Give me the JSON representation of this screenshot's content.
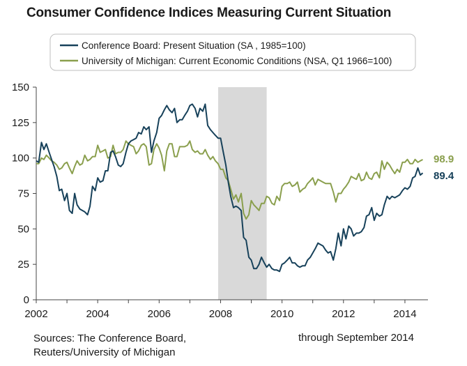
{
  "chart_data": {
    "type": "line",
    "title": "Consumer Confidence Indices Measuring Current Situation",
    "xlim": [
      2002,
      2014.75
    ],
    "ylim": [
      0,
      150
    ],
    "x_ticks": [
      2002,
      2004,
      2006,
      2008,
      2010,
      2012,
      2014
    ],
    "x_tick_labels": [
      "2002",
      "2004",
      "2006",
      "2008",
      "2010",
      "2012",
      "2014"
    ],
    "y_ticks": [
      0,
      25,
      50,
      75,
      100,
      125,
      150
    ],
    "y_tick_labels": [
      "0",
      "25",
      "50",
      "75",
      "100",
      "125",
      "150"
    ],
    "grid": false,
    "legend_placement": "top",
    "shaded_region": {
      "x_start": 2007.92,
      "x_end": 2009.5,
      "color": "#d9d9d9"
    },
    "series": [
      {
        "name": "Conference Board: Present Situation (SA , 1985=100)",
        "color": "#17415a",
        "end_label": "89.4",
        "points": [
          [
            2002.0,
            98
          ],
          [
            2002.08,
            97
          ],
          [
            2002.17,
            111
          ],
          [
            2002.25,
            106
          ],
          [
            2002.33,
            110
          ],
          [
            2002.42,
            104
          ],
          [
            2002.5,
            99
          ],
          [
            2002.58,
            94
          ],
          [
            2002.67,
            87
          ],
          [
            2002.75,
            77
          ],
          [
            2002.83,
            78
          ],
          [
            2002.92,
            70
          ],
          [
            2003.0,
            75
          ],
          [
            2003.08,
            63
          ],
          [
            2003.17,
            61
          ],
          [
            2003.25,
            75
          ],
          [
            2003.33,
            67
          ],
          [
            2003.42,
            64
          ],
          [
            2003.5,
            63
          ],
          [
            2003.58,
            62
          ],
          [
            2003.67,
            60
          ],
          [
            2003.75,
            66
          ],
          [
            2003.83,
            80
          ],
          [
            2003.92,
            77
          ],
          [
            2004.0,
            86
          ],
          [
            2004.08,
            83
          ],
          [
            2004.17,
            84
          ],
          [
            2004.25,
            91
          ],
          [
            2004.33,
            91
          ],
          [
            2004.42,
            104
          ],
          [
            2004.5,
            105
          ],
          [
            2004.58,
            101
          ],
          [
            2004.67,
            95
          ],
          [
            2004.75,
            94
          ],
          [
            2004.83,
            96
          ],
          [
            2004.92,
            104
          ],
          [
            2005.0,
            110
          ],
          [
            2005.08,
            112
          ],
          [
            2005.17,
            113
          ],
          [
            2005.25,
            114
          ],
          [
            2005.33,
            118
          ],
          [
            2005.42,
            117
          ],
          [
            2005.5,
            122
          ],
          [
            2005.58,
            120
          ],
          [
            2005.67,
            122
          ],
          [
            2005.75,
            104
          ],
          [
            2005.83,
            112
          ],
          [
            2005.92,
            118
          ],
          [
            2006.0,
            128
          ],
          [
            2006.08,
            130
          ],
          [
            2006.17,
            134
          ],
          [
            2006.25,
            137
          ],
          [
            2006.33,
            134
          ],
          [
            2006.42,
            132
          ],
          [
            2006.5,
            135
          ],
          [
            2006.58,
            125
          ],
          [
            2006.67,
            127
          ],
          [
            2006.75,
            127
          ],
          [
            2006.83,
            130
          ],
          [
            2006.92,
            133
          ],
          [
            2007.0,
            137
          ],
          [
            2007.08,
            138
          ],
          [
            2007.17,
            135
          ],
          [
            2007.25,
            129
          ],
          [
            2007.33,
            135
          ],
          [
            2007.42,
            133
          ],
          [
            2007.5,
            138
          ],
          [
            2007.58,
            123
          ],
          [
            2007.67,
            120
          ],
          [
            2007.75,
            118
          ],
          [
            2007.83,
            116
          ],
          [
            2007.92,
            114
          ],
          [
            2008.0,
            114
          ],
          [
            2008.08,
            105
          ],
          [
            2008.17,
            95
          ],
          [
            2008.25,
            83
          ],
          [
            2008.33,
            73
          ],
          [
            2008.42,
            65
          ],
          [
            2008.5,
            66
          ],
          [
            2008.58,
            65
          ],
          [
            2008.67,
            63
          ],
          [
            2008.75,
            44
          ],
          [
            2008.83,
            42
          ],
          [
            2008.92,
            30
          ],
          [
            2009.0,
            28
          ],
          [
            2009.08,
            22
          ],
          [
            2009.17,
            22
          ],
          [
            2009.25,
            25
          ],
          [
            2009.33,
            30
          ],
          [
            2009.42,
            26
          ],
          [
            2009.5,
            23
          ],
          [
            2009.58,
            25
          ],
          [
            2009.67,
            22
          ],
          [
            2009.75,
            21
          ],
          [
            2009.83,
            21
          ],
          [
            2009.92,
            20
          ],
          [
            2010.0,
            25
          ],
          [
            2010.08,
            26
          ],
          [
            2010.17,
            28
          ],
          [
            2010.25,
            30
          ],
          [
            2010.33,
            26
          ],
          [
            2010.42,
            26
          ],
          [
            2010.5,
            24
          ],
          [
            2010.58,
            23
          ],
          [
            2010.67,
            24
          ],
          [
            2010.75,
            24
          ],
          [
            2010.83,
            28
          ],
          [
            2010.92,
            30
          ],
          [
            2011.0,
            33
          ],
          [
            2011.08,
            36
          ],
          [
            2011.17,
            40
          ],
          [
            2011.25,
            39
          ],
          [
            2011.33,
            38
          ],
          [
            2011.42,
            35
          ],
          [
            2011.5,
            33
          ],
          [
            2011.58,
            34
          ],
          [
            2011.67,
            28
          ],
          [
            2011.75,
            36
          ],
          [
            2011.83,
            47
          ],
          [
            2011.92,
            38
          ],
          [
            2012.0,
            50
          ],
          [
            2012.08,
            43
          ],
          [
            2012.17,
            52
          ],
          [
            2012.25,
            50
          ],
          [
            2012.33,
            45
          ],
          [
            2012.42,
            47
          ],
          [
            2012.5,
            47
          ],
          [
            2012.58,
            48
          ],
          [
            2012.67,
            51
          ],
          [
            2012.75,
            59
          ],
          [
            2012.83,
            60
          ],
          [
            2012.92,
            65
          ],
          [
            2013.0,
            56
          ],
          [
            2013.08,
            61
          ],
          [
            2013.17,
            59
          ],
          [
            2013.25,
            60
          ],
          [
            2013.33,
            67
          ],
          [
            2013.42,
            73
          ],
          [
            2013.5,
            71
          ],
          [
            2013.58,
            73
          ],
          [
            2013.67,
            72
          ],
          [
            2013.75,
            73
          ],
          [
            2013.83,
            74
          ],
          [
            2013.92,
            77
          ],
          [
            2014.0,
            79
          ],
          [
            2014.08,
            78
          ],
          [
            2014.17,
            80
          ],
          [
            2014.25,
            86
          ],
          [
            2014.33,
            87
          ],
          [
            2014.42,
            93
          ],
          [
            2014.5,
            88
          ],
          [
            2014.58,
            89.4
          ]
        ]
      },
      {
        "name": "University of Michigan: Current Economic Conditions (NSA, Q1 1966=100)",
        "color": "#8a9f4d",
        "end_label": "98.9",
        "points": [
          [
            2002.0,
            96
          ],
          [
            2002.08,
            96
          ],
          [
            2002.17,
            100
          ],
          [
            2002.25,
            99
          ],
          [
            2002.33,
            102
          ],
          [
            2002.42,
            100
          ],
          [
            2002.5,
            98
          ],
          [
            2002.58,
            97
          ],
          [
            2002.67,
            95
          ],
          [
            2002.75,
            92
          ],
          [
            2002.83,
            93
          ],
          [
            2002.92,
            96
          ],
          [
            2003.0,
            97
          ],
          [
            2003.08,
            93
          ],
          [
            2003.17,
            89
          ],
          [
            2003.25,
            94
          ],
          [
            2003.33,
            98
          ],
          [
            2003.42,
            95
          ],
          [
            2003.5,
            96
          ],
          [
            2003.58,
            102
          ],
          [
            2003.67,
            98
          ],
          [
            2003.75,
            99
          ],
          [
            2003.83,
            101
          ],
          [
            2003.92,
            101
          ],
          [
            2004.0,
            109
          ],
          [
            2004.08,
            104
          ],
          [
            2004.17,
            105
          ],
          [
            2004.25,
            106
          ],
          [
            2004.33,
            100
          ],
          [
            2004.42,
            101
          ],
          [
            2004.5,
            109
          ],
          [
            2004.58,
            103
          ],
          [
            2004.67,
            104
          ],
          [
            2004.75,
            104
          ],
          [
            2004.83,
            106
          ],
          [
            2004.92,
            112
          ],
          [
            2005.0,
            110
          ],
          [
            2005.08,
            109
          ],
          [
            2005.17,
            108
          ],
          [
            2005.25,
            103
          ],
          [
            2005.33,
            105
          ],
          [
            2005.42,
            109
          ],
          [
            2005.5,
            110
          ],
          [
            2005.58,
            108
          ],
          [
            2005.67,
            95
          ],
          [
            2005.75,
            96
          ],
          [
            2005.83,
            106
          ],
          [
            2005.92,
            110
          ],
          [
            2006.0,
            107
          ],
          [
            2006.08,
            102
          ],
          [
            2006.17,
            91
          ],
          [
            2006.25,
            105
          ],
          [
            2006.33,
            110
          ],
          [
            2006.42,
            110
          ],
          [
            2006.5,
            101
          ],
          [
            2006.58,
            101
          ],
          [
            2006.67,
            108
          ],
          [
            2006.75,
            108
          ],
          [
            2006.83,
            108
          ],
          [
            2006.92,
            109
          ],
          [
            2007.0,
            112
          ],
          [
            2007.08,
            106
          ],
          [
            2007.17,
            104
          ],
          [
            2007.25,
            105
          ],
          [
            2007.33,
            103
          ],
          [
            2007.42,
            103
          ],
          [
            2007.5,
            106
          ],
          [
            2007.58,
            102
          ],
          [
            2007.67,
            99
          ],
          [
            2007.75,
            101
          ],
          [
            2007.83,
            98
          ],
          [
            2007.92,
            96
          ],
          [
            2008.0,
            92
          ],
          [
            2008.08,
            92
          ],
          [
            2008.17,
            86
          ],
          [
            2008.25,
            84
          ],
          [
            2008.33,
            78
          ],
          [
            2008.42,
            71
          ],
          [
            2008.5,
            74
          ],
          [
            2008.58,
            69
          ],
          [
            2008.67,
            75
          ],
          [
            2008.75,
            61
          ],
          [
            2008.83,
            57
          ],
          [
            2008.92,
            60
          ],
          [
            2009.0,
            70
          ],
          [
            2009.08,
            67
          ],
          [
            2009.17,
            65
          ],
          [
            2009.25,
            63
          ],
          [
            2009.33,
            68
          ],
          [
            2009.42,
            68
          ],
          [
            2009.5,
            73
          ],
          [
            2009.58,
            72
          ],
          [
            2009.67,
            68
          ],
          [
            2009.75,
            67
          ],
          [
            2009.83,
            73
          ],
          [
            2009.92,
            70
          ],
          [
            2010.0,
            80
          ],
          [
            2010.08,
            82
          ],
          [
            2010.17,
            82
          ],
          [
            2010.25,
            83
          ],
          [
            2010.33,
            80
          ],
          [
            2010.42,
            81
          ],
          [
            2010.5,
            83
          ],
          [
            2010.58,
            76
          ],
          [
            2010.67,
            78
          ],
          [
            2010.75,
            79
          ],
          [
            2010.83,
            82
          ],
          [
            2010.92,
            84
          ],
          [
            2011.0,
            86
          ],
          [
            2011.08,
            81
          ],
          [
            2011.17,
            85
          ],
          [
            2011.25,
            84
          ],
          [
            2011.33,
            83
          ],
          [
            2011.42,
            82
          ],
          [
            2011.5,
            82
          ],
          [
            2011.58,
            82
          ],
          [
            2011.67,
            76
          ],
          [
            2011.75,
            69
          ],
          [
            2011.83,
            75
          ],
          [
            2011.92,
            75
          ],
          [
            2012.0,
            78
          ],
          [
            2012.08,
            80
          ],
          [
            2012.17,
            83
          ],
          [
            2012.25,
            87
          ],
          [
            2012.33,
            86
          ],
          [
            2012.42,
            85
          ],
          [
            2012.5,
            89
          ],
          [
            2012.58,
            84
          ],
          [
            2012.67,
            85
          ],
          [
            2012.75,
            90
          ],
          [
            2012.83,
            86
          ],
          [
            2012.92,
            85
          ],
          [
            2013.0,
            89
          ],
          [
            2013.08,
            90
          ],
          [
            2013.17,
            86
          ],
          [
            2013.25,
            98
          ],
          [
            2013.33,
            92
          ],
          [
            2013.42,
            97
          ],
          [
            2013.5,
            95
          ],
          [
            2013.58,
            92
          ],
          [
            2013.67,
            89
          ],
          [
            2013.75,
            92
          ],
          [
            2013.83,
            90
          ],
          [
            2013.92,
            97
          ],
          [
            2014.0,
            97
          ],
          [
            2014.08,
            99
          ],
          [
            2014.17,
            96
          ],
          [
            2014.25,
            96
          ],
          [
            2014.33,
            99
          ],
          [
            2014.42,
            97
          ],
          [
            2014.5,
            98
          ],
          [
            2014.58,
            98.9
          ]
        ]
      }
    ]
  },
  "footer": {
    "sources_line1": "Sources: The Conference Board,",
    "sources_line2": "Reuters/University  of Michigan",
    "through": "through September 2014"
  }
}
